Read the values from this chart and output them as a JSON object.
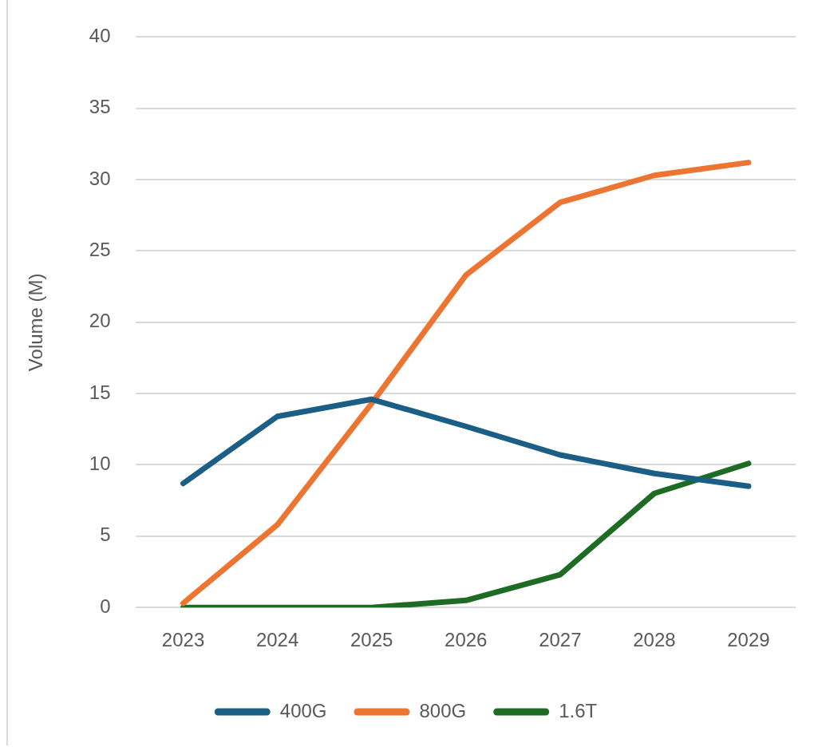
{
  "chart_data": {
    "type": "line",
    "ylabel": "Volume (M)",
    "categories": [
      "2023",
      "2024",
      "2025",
      "2026",
      "2027",
      "2028",
      "2029"
    ],
    "series": [
      {
        "name": "400G",
        "color": "#1c5f86",
        "values": [
          8.7,
          13.4,
          14.6,
          12.7,
          10.7,
          9.4,
          8.5
        ]
      },
      {
        "name": "800G",
        "color": "#ec7532",
        "values": [
          0.3,
          5.8,
          14.3,
          23.3,
          28.4,
          30.3,
          31.2
        ]
      },
      {
        "name": "1.6T",
        "color": "#1e6c23",
        "values": [
          0,
          0,
          0,
          0.5,
          2.3,
          8.0,
          10.1
        ]
      }
    ],
    "ylim": [
      0,
      40
    ],
    "yticks": [
      0,
      5,
      10,
      15,
      20,
      25,
      30,
      35,
      40
    ],
    "grid": "y",
    "legend": "bottom"
  }
}
